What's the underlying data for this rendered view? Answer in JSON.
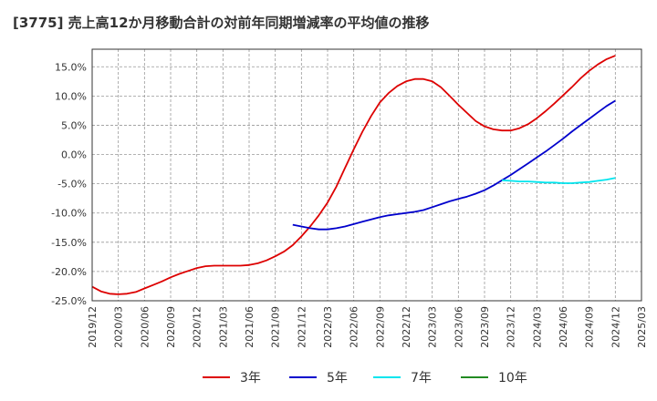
{
  "chart_data": {
    "type": "line",
    "title": "[3775]  売上高12か月移動合計の対前年同期増減率の平均値の推移",
    "xlabel": "",
    "ylabel": "",
    "x_ticks": [
      "2019/12",
      "2020/03",
      "2020/06",
      "2020/09",
      "2020/12",
      "2021/03",
      "2021/06",
      "2021/09",
      "2021/12",
      "2022/03",
      "2022/06",
      "2022/09",
      "2022/12",
      "2023/03",
      "2023/06",
      "2023/09",
      "2023/12",
      "2024/03",
      "2024/06",
      "2024/09",
      "2024/12",
      "2025/03"
    ],
    "y_ticks": [
      "15.0%",
      "10.0%",
      "5.0%",
      "0.0%",
      "-5.0%",
      "-10.0%",
      "-15.0%",
      "-20.0%",
      "-25.0%"
    ],
    "y_tick_values": [
      15,
      10,
      5,
      0,
      -5,
      -10,
      -15,
      -20,
      -25
    ],
    "ylim": [
      -25,
      18
    ],
    "grid": true,
    "legend_position": "bottom",
    "series": [
      {
        "name": "3年",
        "color": "#dd0000",
        "x": [
          "2019/12",
          "2020/01",
          "2020/02",
          "2020/03",
          "2020/04",
          "2020/05",
          "2020/06",
          "2020/07",
          "2020/08",
          "2020/09",
          "2020/10",
          "2020/11",
          "2020/12",
          "2021/01",
          "2021/02",
          "2021/03",
          "2021/04",
          "2021/05",
          "2021/06",
          "2021/07",
          "2021/08",
          "2021/09",
          "2021/10",
          "2021/11",
          "2021/12",
          "2022/01",
          "2022/02",
          "2022/03",
          "2022/04",
          "2022/05",
          "2022/06",
          "2022/07",
          "2022/08",
          "2022/09",
          "2022/10",
          "2022/11",
          "2022/12",
          "2023/01",
          "2023/02",
          "2023/03",
          "2023/04",
          "2023/05",
          "2023/06",
          "2023/07",
          "2023/08",
          "2023/09",
          "2023/10",
          "2023/11",
          "2023/12",
          "2024/01",
          "2024/02",
          "2024/03",
          "2024/04",
          "2024/05",
          "2024/06",
          "2024/07",
          "2024/08",
          "2024/09",
          "2024/10",
          "2024/11",
          "2024/12"
        ],
        "values": [
          -22.6,
          -23.4,
          -23.8,
          -23.9,
          -23.8,
          -23.5,
          -22.9,
          -22.3,
          -21.7,
          -21.0,
          -20.4,
          -19.9,
          -19.4,
          -19.1,
          -19.0,
          -19.0,
          -19.0,
          -19.0,
          -18.9,
          -18.6,
          -18.1,
          -17.4,
          -16.6,
          -15.5,
          -14.0,
          -12.3,
          -10.4,
          -8.2,
          -5.5,
          -2.3,
          0.9,
          3.9,
          6.6,
          8.9,
          10.5,
          11.7,
          12.5,
          12.9,
          12.9,
          12.5,
          11.5,
          10.0,
          8.5,
          7.1,
          5.7,
          4.8,
          4.3,
          4.1,
          4.1,
          4.5,
          5.2,
          6.2,
          7.4,
          8.7,
          10.1,
          11.5,
          13.0,
          14.3,
          15.4,
          16.3,
          16.9
        ]
      },
      {
        "name": "5年",
        "color": "#0000cc",
        "x": [
          "2021/11",
          "2021/12",
          "2022/01",
          "2022/02",
          "2022/03",
          "2022/04",
          "2022/05",
          "2022/06",
          "2022/07",
          "2022/08",
          "2022/09",
          "2022/10",
          "2022/11",
          "2022/12",
          "2023/01",
          "2023/02",
          "2023/03",
          "2023/04",
          "2023/05",
          "2023/06",
          "2023/07",
          "2023/08",
          "2023/09",
          "2023/10",
          "2023/11",
          "2023/12",
          "2024/01",
          "2024/02",
          "2024/03",
          "2024/04",
          "2024/05",
          "2024/06",
          "2024/07",
          "2024/08",
          "2024/09",
          "2024/10",
          "2024/11",
          "2024/12"
        ],
        "values": [
          -12.0,
          -12.3,
          -12.6,
          -12.8,
          -12.8,
          -12.6,
          -12.3,
          -11.9,
          -11.5,
          -11.1,
          -10.7,
          -10.4,
          -10.2,
          -10.0,
          -9.8,
          -9.5,
          -9.0,
          -8.5,
          -8.0,
          -7.6,
          -7.2,
          -6.7,
          -6.1,
          -5.3,
          -4.4,
          -3.5,
          -2.5,
          -1.5,
          -0.5,
          0.5,
          1.6,
          2.7,
          3.9,
          5.0,
          6.1,
          7.2,
          8.3,
          9.2
        ]
      },
      {
        "name": "7年",
        "color": "#00e5ee",
        "x": [
          "2023/11",
          "2023/12",
          "2024/01",
          "2024/02",
          "2024/03",
          "2024/04",
          "2024/05",
          "2024/06",
          "2024/07",
          "2024/08",
          "2024/09",
          "2024/10",
          "2024/11",
          "2024/12"
        ],
        "values": [
          -4.4,
          -4.5,
          -4.6,
          -4.6,
          -4.7,
          -4.8,
          -4.8,
          -4.9,
          -4.9,
          -4.8,
          -4.7,
          -4.5,
          -4.3,
          -4.0
        ]
      },
      {
        "name": "10年",
        "color": "#228b22",
        "x": [],
        "values": []
      }
    ]
  }
}
